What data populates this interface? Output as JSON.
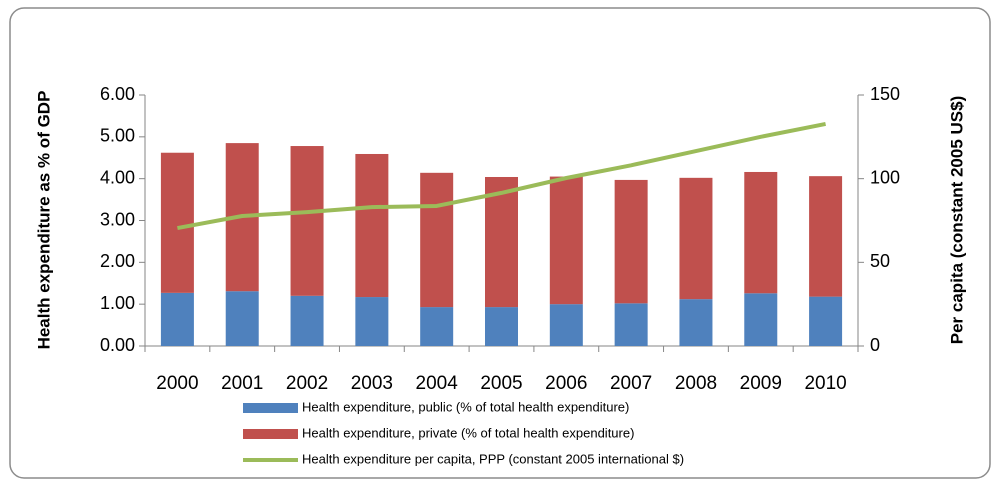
{
  "chart_data": {
    "type": "bar",
    "stacked": true,
    "categories": [
      "2000",
      "2001",
      "2002",
      "2003",
      "2004",
      "2005",
      "2006",
      "2007",
      "2008",
      "2009",
      "2010"
    ],
    "y_label": "Health expenditure as % of GDP",
    "y2_label": "Per capita (constant 2005 US$)",
    "ylim": [
      0,
      6
    ],
    "yticks": [
      {
        "value": 0,
        "label": "0.00"
      },
      {
        "value": 1,
        "label": "1.00"
      },
      {
        "value": 2,
        "label": "2.00"
      },
      {
        "value": 3,
        "label": "3.00"
      },
      {
        "value": 4,
        "label": "4.00"
      },
      {
        "value": 5,
        "label": "5.00"
      },
      {
        "value": 6,
        "label": "6.00"
      }
    ],
    "y2lim": [
      0,
      150
    ],
    "y2ticks": [
      0,
      50,
      100,
      150
    ],
    "legend": "bottom",
    "series": [
      {
        "name": "Health expenditure, public (% of total health expenditure)",
        "type": "bar",
        "color": "#4f81bd",
        "values": [
          1.27,
          1.31,
          1.2,
          1.17,
          0.93,
          0.93,
          1.0,
          1.02,
          1.12,
          1.26,
          1.18
        ]
      },
      {
        "name": "Health expenditure, private (% of total health expenditure)",
        "type": "bar",
        "color": "#c0504d",
        "values": [
          3.35,
          3.54,
          3.58,
          3.42,
          3.21,
          3.11,
          3.05,
          2.95,
          2.9,
          2.9,
          2.88
        ]
      },
      {
        "name": "Health expenditure per capita, PPP (constant 2005 international $)",
        "type": "line",
        "axis": "y2",
        "color": "#9bbb59",
        "values": [
          70.5,
          77.7,
          80,
          83,
          83.7,
          91.5,
          100.4,
          108,
          116.5,
          125,
          132.7
        ]
      }
    ]
  }
}
